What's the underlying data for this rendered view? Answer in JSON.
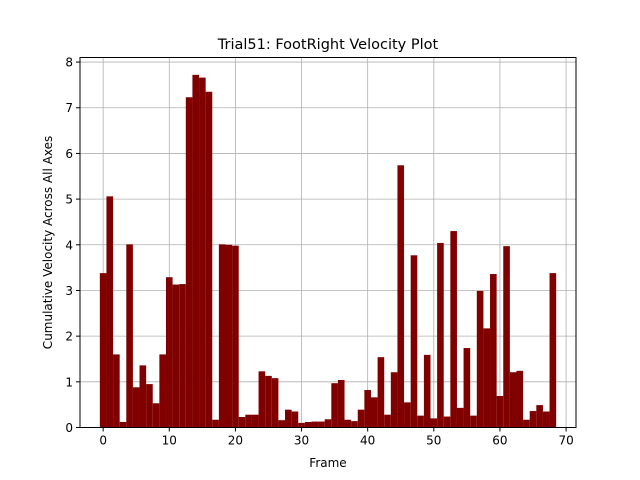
{
  "chart_data": {
    "type": "bar",
    "title": "Trial51: FootRight Velocity Plot",
    "xlabel": "Frame",
    "ylabel": "Cumulative Velocity Across All Axes",
    "xlim": [
      -3.5,
      71.5
    ],
    "ylim": [
      0,
      8.1
    ],
    "xticks": [
      0,
      10,
      20,
      30,
      40,
      50,
      60,
      70
    ],
    "yticks": [
      0,
      1,
      2,
      3,
      4,
      5,
      6,
      7,
      8
    ],
    "grid": true,
    "bar_color": "#800000",
    "x": [
      0,
      1,
      2,
      3,
      4,
      5,
      6,
      7,
      8,
      9,
      10,
      11,
      12,
      13,
      14,
      15,
      16,
      17,
      18,
      19,
      20,
      21,
      22,
      23,
      24,
      25,
      26,
      27,
      28,
      29,
      30,
      31,
      32,
      33,
      34,
      35,
      36,
      37,
      38,
      39,
      40,
      41,
      42,
      43,
      44,
      45,
      46,
      47,
      48,
      49,
      50,
      51,
      52,
      53,
      54,
      55,
      56,
      57,
      58,
      59,
      60,
      61,
      62,
      63,
      64,
      65,
      66,
      67,
      68
    ],
    "values": [
      3.38,
      5.06,
      1.6,
      0.12,
      4.01,
      0.88,
      1.36,
      0.95,
      0.53,
      1.6,
      3.29,
      3.13,
      3.14,
      7.23,
      7.72,
      7.66,
      7.35,
      0.17,
      4.01,
      4.0,
      3.98,
      0.23,
      0.28,
      0.28,
      1.23,
      1.13,
      1.08,
      0.16,
      0.39,
      0.35,
      0.1,
      0.12,
      0.13,
      0.13,
      0.18,
      0.97,
      1.04,
      0.17,
      0.14,
      0.39,
      0.82,
      0.66,
      1.54,
      0.28,
      1.21,
      5.74,
      0.55,
      3.77,
      0.26,
      1.59,
      0.2,
      4.04,
      0.24,
      4.3,
      0.43,
      1.74,
      0.26,
      2.99,
      2.17,
      3.36,
      0.69,
      3.97,
      1.21,
      1.24,
      0.17,
      0.36,
      0.49,
      0.35,
      3.38
    ]
  }
}
